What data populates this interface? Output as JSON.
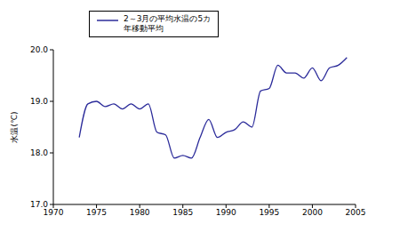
{
  "chart_data": {
    "type": "line",
    "y_label": "水温(℃)",
    "x": [
      1973,
      1974,
      1975,
      1976,
      1977,
      1978,
      1979,
      1980,
      1981,
      1982,
      1983,
      1984,
      1985,
      1986,
      1987,
      1988,
      1989,
      1990,
      1991,
      1992,
      1993,
      1994,
      1995,
      1996,
      1997,
      1998,
      1999,
      2000,
      2001,
      2002,
      2003,
      2004
    ],
    "series": [
      {
        "name": "2～3月の平均水温の5カ年移動平均",
        "color": "#2b2b9a",
        "values": [
          18.3,
          18.95,
          19.0,
          18.9,
          18.95,
          18.85,
          18.95,
          18.85,
          18.95,
          18.4,
          18.35,
          17.9,
          17.95,
          17.9,
          18.3,
          18.65,
          18.3,
          18.4,
          18.45,
          18.6,
          18.5,
          19.2,
          19.25,
          19.7,
          19.55,
          19.55,
          19.45,
          19.65,
          19.4,
          19.65,
          19.7,
          19.85
        ]
      }
    ],
    "xlim": [
      1970,
      2005
    ],
    "xticks": [
      1970,
      1975,
      1980,
      1985,
      1990,
      1995,
      2000,
      2005
    ],
    "ylim": [
      17,
      20
    ],
    "yticks": [
      {
        "value": 17,
        "label": "17.0"
      },
      {
        "value": 18,
        "label": "18.0"
      },
      {
        "value": 19,
        "label": "19.0"
      },
      {
        "value": 20,
        "label": "20.0"
      }
    ],
    "grid": false
  }
}
